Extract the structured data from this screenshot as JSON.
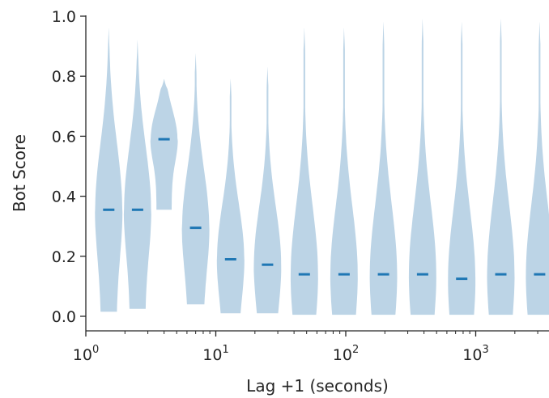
{
  "chart_data": {
    "type": "violin",
    "xlabel": "Lag +1 (seconds)",
    "ylabel": "Bot Score",
    "xscale": "log",
    "xlim": [
      1,
      3800
    ],
    "ylim": [
      0,
      1
    ],
    "grid": false,
    "legend": "none",
    "x_tick_base": "10",
    "x_tick_exponents": [
      "0",
      "1",
      "2",
      "3"
    ],
    "y_ticks": [
      "0.0",
      "0.2",
      "0.4",
      "0.6",
      "0.8",
      "1.0"
    ],
    "colors": {
      "body": "#bcd4e6",
      "median": "#1f77b4",
      "axis": "#262626"
    },
    "violins": [
      {
        "x": 1.5,
        "min": 0.015,
        "max": 0.96,
        "median": 0.355
      },
      {
        "x": 2.5,
        "min": 0.025,
        "max": 0.92,
        "median": 0.355
      },
      {
        "x": 4,
        "min": 0.355,
        "max": 0.79,
        "median": 0.59
      },
      {
        "x": 7,
        "min": 0.04,
        "max": 0.875,
        "median": 0.295
      },
      {
        "x": 13,
        "min": 0.01,
        "max": 0.79,
        "median": 0.19
      },
      {
        "x": 25,
        "min": 0.01,
        "max": 0.83,
        "median": 0.172
      },
      {
        "x": 48,
        "min": 0.005,
        "max": 0.96,
        "median": 0.14
      },
      {
        "x": 97,
        "min": 0.005,
        "max": 0.96,
        "median": 0.14
      },
      {
        "x": 195,
        "min": 0.005,
        "max": 0.98,
        "median": 0.14
      },
      {
        "x": 390,
        "min": 0.005,
        "max": 0.99,
        "median": 0.14
      },
      {
        "x": 780,
        "min": 0.005,
        "max": 0.98,
        "median": 0.125
      },
      {
        "x": 1560,
        "min": 0.005,
        "max": 0.99,
        "median": 0.14
      },
      {
        "x": 3100,
        "min": 0.005,
        "max": 0.98,
        "median": 0.14
      }
    ]
  }
}
